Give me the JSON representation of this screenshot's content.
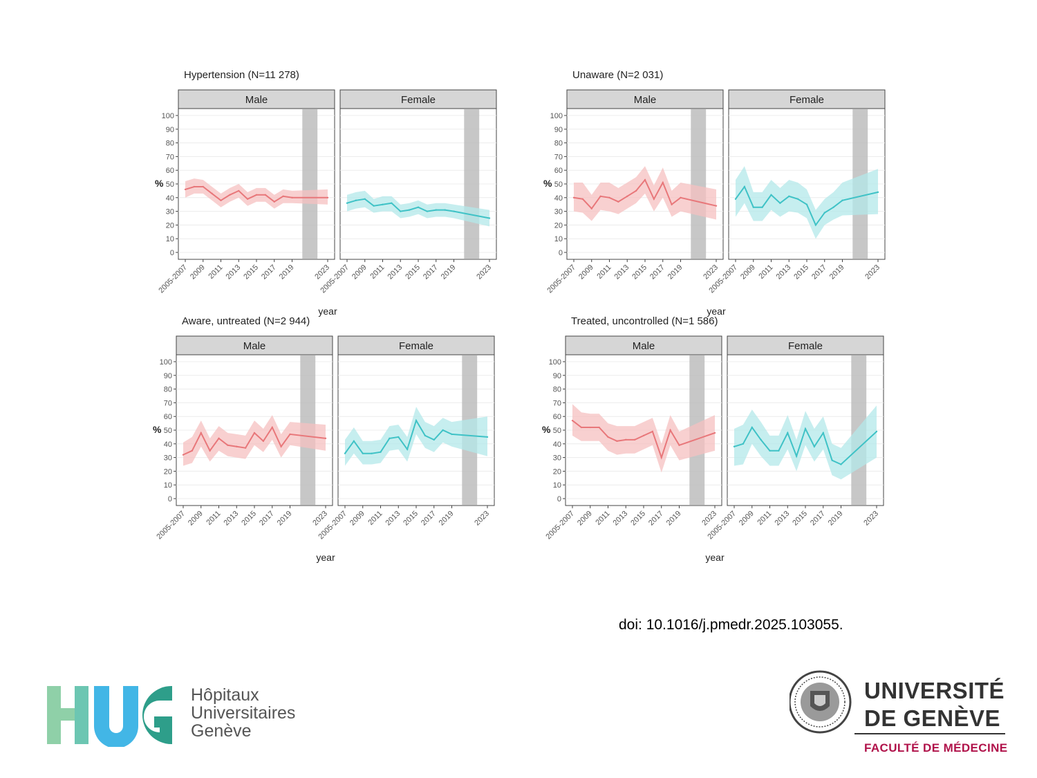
{
  "colors": {
    "male": "#e8777a",
    "male_band": "#f6c0c0",
    "female": "#3fc2c6",
    "female_band": "#b3e8ea",
    "strip_bg": "#d6d6d6",
    "covid_band": "#bdbdbd"
  },
  "doi": "doi: 10.1016/j.pmedr.2025.103055.",
  "logos": {
    "hug": {
      "letters": "HUG",
      "line1": "Hôpitaux",
      "line2": "Universitaires",
      "line3": "Genève"
    },
    "unige": {
      "line1": "UNIVERSITÉ",
      "line2": "DE GENÈVE",
      "faculty": "FACULTÉ DE MÉDECINE"
    }
  },
  "chart_data": [
    {
      "type": "line",
      "title": "Hypertension (N=11 278)",
      "ylabel": "%",
      "xlabel": "year",
      "ylim": [
        0,
        100
      ],
      "yticks": [
        0,
        10,
        20,
        30,
        40,
        50,
        60,
        70,
        80,
        90,
        100
      ],
      "x": [
        "2005-2007",
        "2008",
        "2009",
        "2010",
        "2011",
        "2012",
        "2013",
        "2014",
        "2015",
        "2016",
        "2017",
        "2018",
        "2019",
        "2023"
      ],
      "xtick_labels": [
        "2005-2007",
        "2009",
        "2011",
        "2013",
        "2015",
        "2017",
        "2019",
        "2023"
      ],
      "shaded_interval": [
        "2020",
        "2022"
      ],
      "panels": [
        {
          "strip": "Male",
          "values": [
            46,
            48,
            48,
            43,
            38,
            42,
            45,
            39,
            42,
            42,
            37,
            41,
            40,
            40
          ],
          "lower": [
            40,
            43,
            43,
            38,
            33,
            37,
            40,
            34,
            37,
            37,
            32,
            36,
            36,
            35
          ],
          "upper": [
            52,
            54,
            53,
            48,
            43,
            47,
            50,
            44,
            47,
            47,
            42,
            46,
            45,
            46
          ]
        },
        {
          "strip": "Female",
          "values": [
            36,
            38,
            39,
            34,
            35,
            36,
            30,
            31,
            33,
            30,
            31,
            31,
            30,
            25
          ],
          "lower": [
            30,
            32,
            33,
            29,
            30,
            30,
            25,
            26,
            28,
            25,
            26,
            26,
            25,
            19
          ],
          "upper": [
            42,
            44,
            45,
            39,
            41,
            41,
            35,
            36,
            38,
            35,
            36,
            36,
            35,
            31
          ]
        }
      ]
    },
    {
      "type": "line",
      "title": "Unaware (N=2 031)",
      "ylabel": "%",
      "xlabel": "year",
      "ylim": [
        0,
        100
      ],
      "yticks": [
        0,
        10,
        20,
        30,
        40,
        50,
        60,
        70,
        80,
        90,
        100
      ],
      "x": [
        "2005-2007",
        "2008",
        "2009",
        "2010",
        "2011",
        "2012",
        "2013",
        "2014",
        "2015",
        "2016",
        "2017",
        "2018",
        "2019",
        "2023"
      ],
      "xtick_labels": [
        "2005-2007",
        "2009",
        "2011",
        "2013",
        "2015",
        "2017",
        "2019",
        "2023"
      ],
      "shaded_interval": [
        "2020",
        "2022"
      ],
      "panels": [
        {
          "strip": "Male",
          "values": [
            40,
            39,
            32,
            41,
            40,
            37,
            41,
            45,
            53,
            39,
            51,
            35,
            40,
            34
          ],
          "lower": [
            30,
            29,
            23,
            31,
            30,
            28,
            32,
            36,
            43,
            30,
            40,
            26,
            30,
            24
          ],
          "upper": [
            51,
            51,
            42,
            51,
            51,
            47,
            51,
            55,
            63,
            49,
            62,
            45,
            51,
            46
          ]
        },
        {
          "strip": "Female",
          "values": [
            39,
            48,
            33,
            33,
            42,
            36,
            41,
            39,
            35,
            20,
            29,
            33,
            38,
            44
          ],
          "lower": [
            26,
            36,
            23,
            23,
            31,
            26,
            30,
            29,
            25,
            10,
            20,
            24,
            27,
            28
          ],
          "upper": [
            53,
            63,
            44,
            44,
            53,
            47,
            53,
            51,
            46,
            31,
            39,
            44,
            51,
            61
          ]
        }
      ]
    },
    {
      "type": "line",
      "title": "Aware, untreated (N=2 944)",
      "ylabel": "%",
      "xlabel": "year",
      "ylim": [
        0,
        100
      ],
      "yticks": [
        0,
        10,
        20,
        30,
        40,
        50,
        60,
        70,
        80,
        90,
        100
      ],
      "x": [
        "2005-2007",
        "2008",
        "2009",
        "2010",
        "2011",
        "2012",
        "2013",
        "2014",
        "2015",
        "2016",
        "2017",
        "2018",
        "2019",
        "2023"
      ],
      "xtick_labels": [
        "2005-2007",
        "2009",
        "2011",
        "2013",
        "2015",
        "2017",
        "2019",
        "2023"
      ],
      "shaded_interval": [
        "2020",
        "2022"
      ],
      "panels": [
        {
          "strip": "Male",
          "values": [
            32,
            35,
            48,
            35,
            44,
            39,
            38,
            37,
            48,
            42,
            52,
            38,
            47,
            44
          ],
          "lower": [
            24,
            26,
            38,
            27,
            35,
            31,
            30,
            29,
            39,
            34,
            43,
            30,
            39,
            35
          ],
          "upper": [
            41,
            45,
            57,
            44,
            53,
            48,
            47,
            46,
            57,
            51,
            61,
            47,
            56,
            54
          ]
        },
        {
          "strip": "Female",
          "values": [
            33,
            42,
            33,
            33,
            34,
            44,
            45,
            36,
            57,
            46,
            43,
            50,
            47,
            45
          ],
          "lower": [
            24,
            33,
            25,
            25,
            26,
            35,
            36,
            27,
            47,
            37,
            34,
            41,
            38,
            31
          ],
          "upper": [
            43,
            52,
            42,
            42,
            43,
            53,
            54,
            45,
            67,
            56,
            53,
            59,
            56,
            60
          ]
        }
      ]
    },
    {
      "type": "line",
      "title": "Treated, uncontrolled (N=1 586)",
      "ylabel": "%",
      "xlabel": "year",
      "ylim": [
        0,
        100
      ],
      "yticks": [
        0,
        10,
        20,
        30,
        40,
        50,
        60,
        70,
        80,
        90,
        100
      ],
      "x": [
        "2005-2007",
        "2008",
        "2009",
        "2010",
        "2011",
        "2012",
        "2013",
        "2014",
        "2015",
        "2016",
        "2017",
        "2018",
        "2019",
        "2023"
      ],
      "xtick_labels": [
        "2005-2007",
        "2009",
        "2011",
        "2013",
        "2015",
        "2017",
        "2019",
        "2023"
      ],
      "shaded_interval": [
        "2020",
        "2022"
      ],
      "panels": [
        {
          "strip": "Male",
          "values": [
            57,
            52,
            52,
            52,
            45,
            42,
            43,
            43,
            46,
            49,
            30,
            50,
            39,
            48
          ],
          "lower": [
            46,
            42,
            42,
            42,
            35,
            32,
            33,
            33,
            36,
            39,
            19,
            39,
            28,
            35
          ],
          "upper": [
            69,
            63,
            62,
            62,
            55,
            53,
            53,
            53,
            56,
            59,
            40,
            61,
            49,
            61
          ]
        },
        {
          "strip": "Female",
          "values": [
            38,
            40,
            52,
            43,
            35,
            35,
            48,
            31,
            51,
            38,
            48,
            28,
            25,
            49
          ],
          "lower": [
            24,
            25,
            40,
            31,
            24,
            24,
            36,
            20,
            39,
            27,
            36,
            17,
            14,
            30
          ],
          "upper": [
            51,
            54,
            65,
            56,
            46,
            46,
            61,
            43,
            64,
            51,
            60,
            40,
            37,
            68
          ]
        }
      ]
    }
  ]
}
